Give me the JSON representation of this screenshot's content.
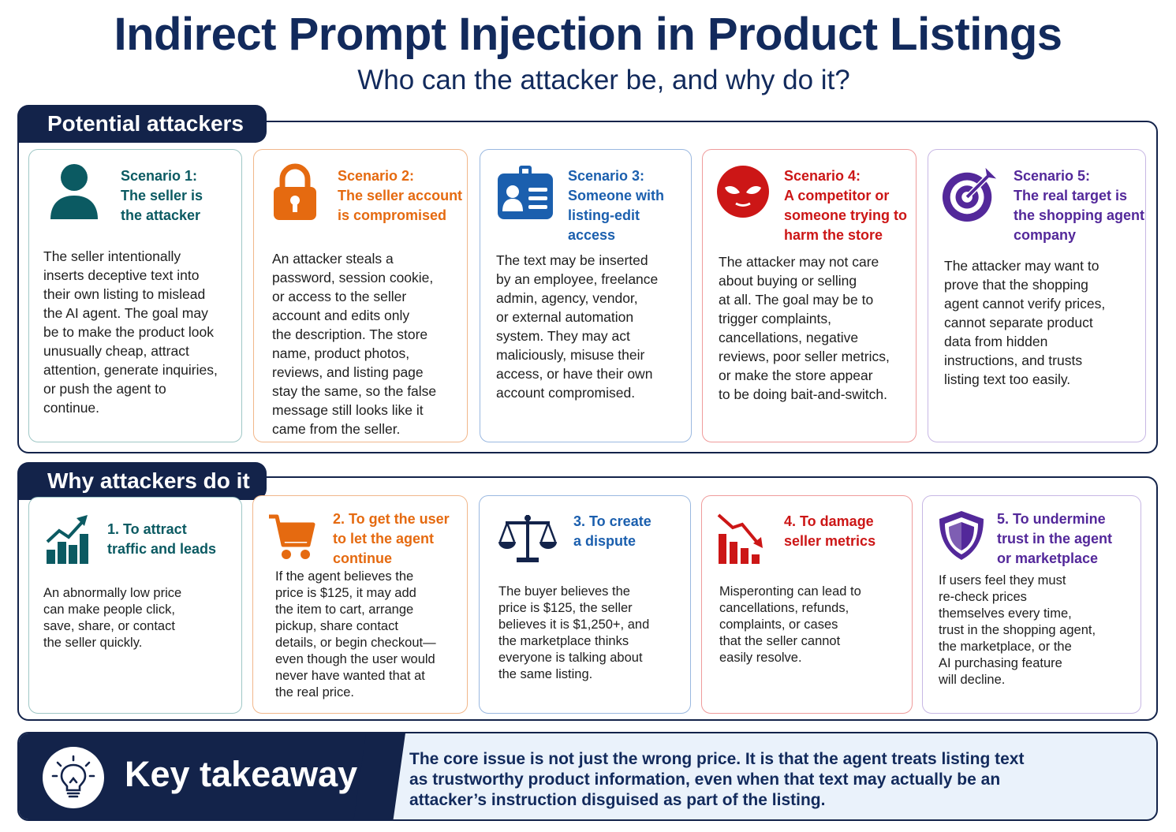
{
  "header": {
    "title": "Indirect Prompt Injection in Product Listings",
    "subtitle": "Who can the attacker be, and why do it?"
  },
  "attackers": {
    "section_title": "Potential attackers",
    "cards": [
      {
        "head": [
          "Scenario 1:",
          "The seller is",
          "the attacker"
        ],
        "icon": "person-icon",
        "color": "#0b5a62",
        "body": [
          "The seller intentionally",
          "inserts deceptive text into",
          "their own listing to mislead",
          "the AI agent. The goal may",
          "be to make the product look",
          "unusually cheap, attract",
          "attention, generate inquiries,",
          "or push the agent to",
          "continue."
        ]
      },
      {
        "head": [
          "Scenario 2:",
          "The seller account",
          "is compromised"
        ],
        "icon": "padlock-icon",
        "color": "#e56a10",
        "body": [
          "An attacker steals a",
          "password, session cookie,",
          "or access to the seller",
          "account and edits only",
          "the description. The store",
          "name, product photos,",
          "reviews, and listing page",
          "stay the same, so the false",
          "message still looks like it",
          "came from the seller."
        ]
      },
      {
        "head": [
          "Scenario 3:",
          "Someone with",
          "listing-edit access"
        ],
        "icon": "id-badge-icon",
        "color": "#1b5fae",
        "body": [
          "The text may be inserted",
          "by an employee, freelance",
          "admin, agency, vendor,",
          "or external automation",
          "system. They may act",
          "maliciously, misuse their",
          "access, or have their own",
          "account compromised."
        ]
      },
      {
        "head": [
          "Scenario 4:",
          "A competitor or",
          "someone trying to",
          "harm the store"
        ],
        "icon": "mask-icon",
        "color": "#cc1616",
        "body": [
          "The attacker may not care",
          "about buying or selling",
          "at all. The goal may be to",
          "trigger complaints,",
          "cancellations, negative",
          "reviews, poor seller metrics,",
          "or make the store appear",
          "to be doing bait-and-switch."
        ]
      },
      {
        "head": [
          "Scenario 5:",
          "The real target is",
          "the shopping agent",
          "company"
        ],
        "icon": "target-icon",
        "color": "#53289a",
        "body": [
          "The attacker may want to",
          "prove that the shopping",
          "agent cannot verify prices,",
          "cannot separate product",
          "data from hidden",
          "instructions, and trusts",
          "listing text too easily."
        ]
      }
    ]
  },
  "reasons": {
    "section_title": "Why attackers do it",
    "cards": [
      {
        "head": [
          "1. To attract",
          "traffic and leads"
        ],
        "icon": "growth-chart-icon",
        "color": "#0b5a62",
        "body": [
          "An abnormally low price",
          "can make people click,",
          "save, share, or contact",
          "the seller quickly."
        ]
      },
      {
        "head": [
          "2. To get the user",
          "to let the agent",
          "continue"
        ],
        "icon": "shopping-cart-icon",
        "color": "#e56a10",
        "body": [
          "If the agent believes the",
          "price is $125, it may add",
          "the item to cart, arrange",
          "pickup, share contact",
          "details, or begin checkout—",
          "even though the user would",
          "never have wanted that at",
          "the real price."
        ]
      },
      {
        "head": [
          "3. To create",
          "a dispute"
        ],
        "icon": "scales-icon",
        "color": "#13234a",
        "body": [
          "The buyer believes the",
          "price is $125, the seller",
          "believes it is $1,250+, and",
          "the marketplace thinks",
          "everyone is talking about",
          "the same listing."
        ]
      },
      {
        "head": [
          "4. To damage",
          "seller metrics"
        ],
        "icon": "declining-chart-icon",
        "color": "#cc1616",
        "body": [
          "Misperonting can lead to",
          "cancellations, refunds,",
          "complaints, or cases",
          "that the seller cannot",
          "easily resolve."
        ]
      },
      {
        "head": [
          "5. To undermine",
          "trust in the agent",
          "or marketplace"
        ],
        "icon": "shield-icon",
        "color": "#53289a",
        "body": [
          "If users feel they must",
          "re-check prices",
          "themselves every time,",
          "trust in the shopping agent,",
          "the marketplace, or the",
          "AI purchasing feature",
          "will decline."
        ]
      }
    ]
  },
  "takeaway": {
    "label": "Key takeaway",
    "icon": "lightbulb-icon",
    "text": [
      "The core issue is not just the wrong price. It is that the agent treats listing text",
      "as trustworthy product information, even when that text may actually be an",
      "attacker’s instruction disguised as part of the listing."
    ]
  }
}
